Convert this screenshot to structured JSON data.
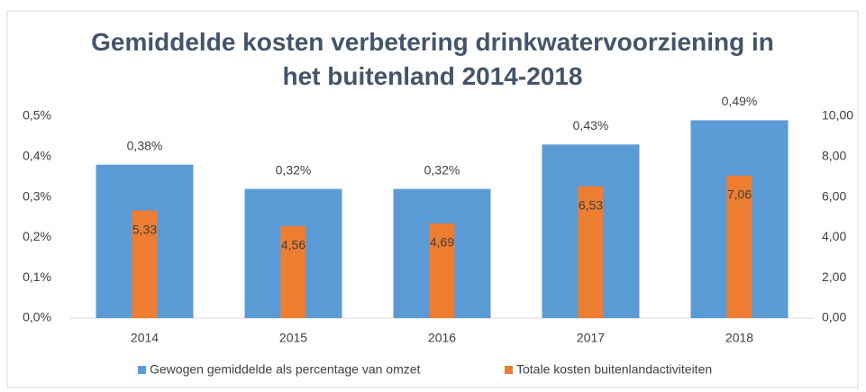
{
  "chart_data": {
    "type": "bar",
    "title": "Gemiddelde kosten verbetering drinkwatervoorziening in het buitenland 2014-2018",
    "categories": [
      "2014",
      "2015",
      "2016",
      "2017",
      "2018"
    ],
    "series": [
      {
        "name": "Gewogen gemiddelde als percentage van omzet",
        "color": "#5b9bd5",
        "axis": "y",
        "values": [
          0.38,
          0.32,
          0.32,
          0.43,
          0.49
        ],
        "value_labels": [
          "0,38%",
          "0,32%",
          "0,32%",
          "0,43%",
          "0,49%"
        ]
      },
      {
        "name": "Totale kosten buitenlandactiviteiten",
        "color": "#ed7d31",
        "axis": "y2",
        "values": [
          5.33,
          4.56,
          4.69,
          6.53,
          7.06
        ],
        "value_labels": [
          "5,33",
          "4,56",
          "4,69",
          "6,53",
          "7,06"
        ]
      }
    ],
    "ylim": [
      0,
      0.5
    ],
    "yticks": [
      {
        "value": 0,
        "label": "0,0%"
      },
      {
        "value": 0.1,
        "label": "0,1%"
      },
      {
        "value": 0.2,
        "label": "0,2%"
      },
      {
        "value": 0.3,
        "label": "0,3%"
      },
      {
        "value": 0.4,
        "label": "0,4%"
      },
      {
        "value": 0.5,
        "label": "0,5%"
      }
    ],
    "y2lim": [
      0,
      10
    ],
    "y2ticks": [
      {
        "value": 0,
        "label": "0,00"
      },
      {
        "value": 2,
        "label": "2,00"
      },
      {
        "value": 4,
        "label": "4,00"
      },
      {
        "value": 6,
        "label": "6,00"
      },
      {
        "value": 8,
        "label": "8,00"
      },
      {
        "value": 10,
        "label": "10,00"
      }
    ],
    "grid": false,
    "legend": "bottom"
  }
}
